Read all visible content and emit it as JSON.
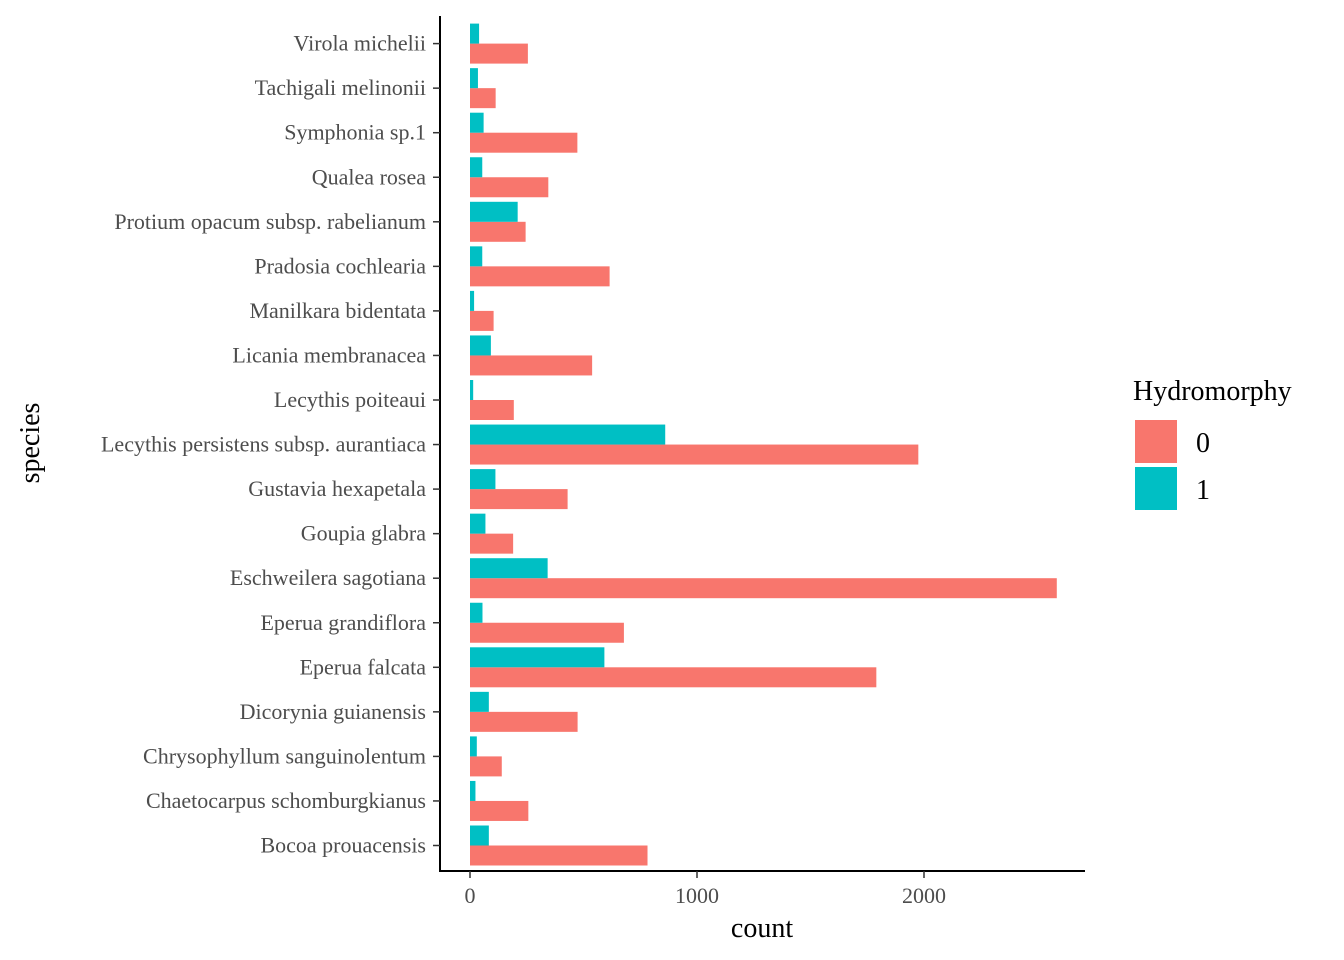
{
  "chart_data": {
    "type": "bar",
    "orientation": "horizontal",
    "xlabel": "count",
    "ylabel": "species",
    "xlim": [
      -130,
      2700
    ],
    "xticks": [
      0,
      1000,
      2000
    ],
    "grid": false,
    "legend": {
      "title": "Hydromorphy",
      "placement": "right"
    },
    "categories": [
      "Virola michelii",
      "Tachigali melinonii",
      "Symphonia sp.1",
      "Qualea rosea",
      "Protium opacum subsp. rabelianum",
      "Pradosia cochlearia",
      "Manilkara bidentata",
      "Licania membranacea",
      "Lecythis poiteaui",
      "Lecythis persistens subsp. aurantiaca",
      "Gustavia hexapetala",
      "Goupia glabra",
      "Eschweilera sagotiana",
      "Eperua grandiflora",
      "Eperua falcata",
      "Dicorynia guianensis",
      "Chrysophyllum sanguinolentum",
      "Chaetocarpus schomburgkianus",
      "Bocoa prouacensis"
    ],
    "series": [
      {
        "name": "0",
        "color": "#F8766D",
        "values": [
          255,
          113,
          473,
          345,
          245,
          615,
          104,
          538,
          193,
          1975,
          430,
          190,
          2585,
          678,
          1790,
          474,
          140,
          257,
          782
        ]
      },
      {
        "name": "1",
        "color": "#00BFC4",
        "values": [
          40,
          35,
          60,
          54,
          210,
          54,
          18,
          92,
          14,
          860,
          112,
          68,
          342,
          55,
          592,
          83,
          30,
          24,
          83
        ]
      }
    ]
  }
}
